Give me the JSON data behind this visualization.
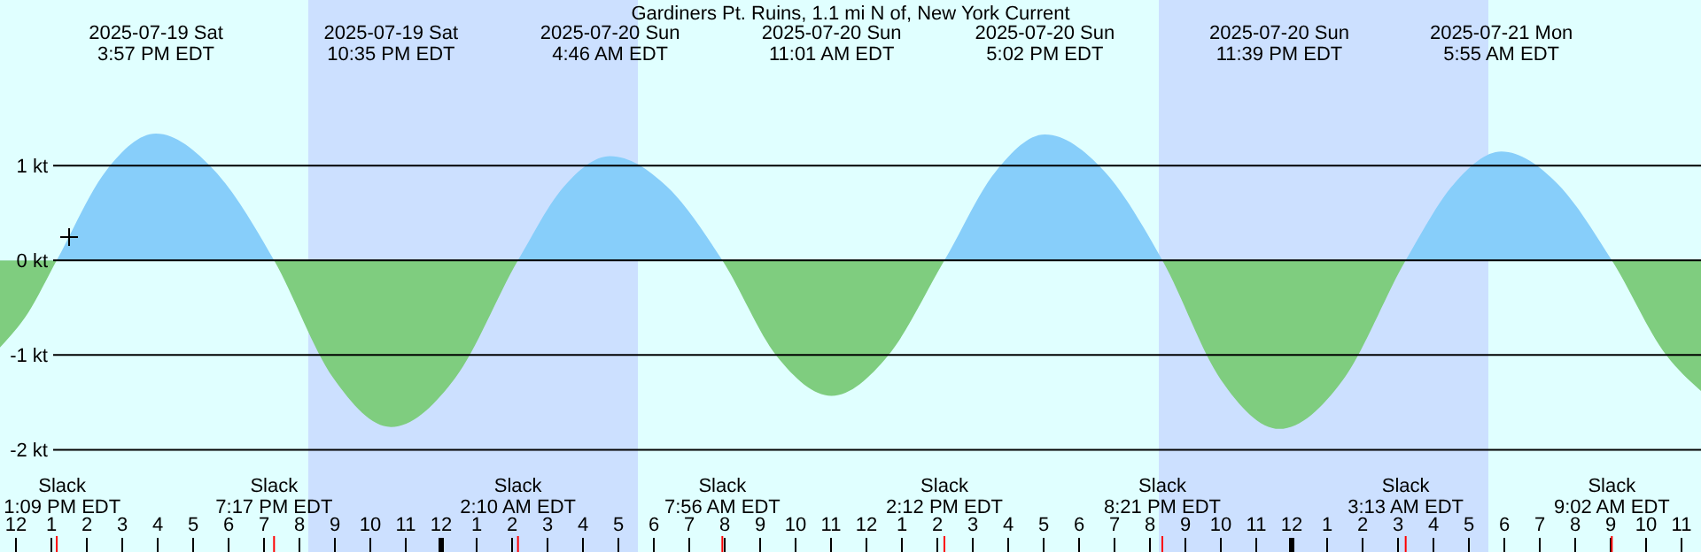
{
  "chart_data": {
    "type": "area",
    "title": "Gardiners Pt. Ruins, 1.1 mi N of, New York Current",
    "x": [
      "2025-07-19T11:33",
      "2025-07-19T12:21",
      "2025-07-19T13:09",
      "2025-07-19T14:33",
      "2025-07-19T15:57",
      "2025-07-19T17:36",
      "2025-07-19T19:17",
      "2025-07-19T20:57",
      "2025-07-19T22:35",
      "2025-07-20T00:24",
      "2025-07-20T02:10",
      "2025-07-20T03:28",
      "2025-07-20T04:46",
      "2025-07-20T06:22",
      "2025-07-20T07:56",
      "2025-07-20T09:28",
      "2025-07-20T11:01",
      "2025-07-20T12:36",
      "2025-07-20T14:12",
      "2025-07-20T15:39",
      "2025-07-20T17:02",
      "2025-07-20T18:43",
      "2025-07-20T20:21",
      "2025-07-20T22:00",
      "2025-07-20T23:39",
      "2025-07-21T01:27",
      "2025-07-21T03:13",
      "2025-07-21T04:35",
      "2025-07-21T05:55",
      "2025-07-21T07:30",
      "2025-07-21T09:02",
      "2025-07-21T10:34",
      "2025-07-21T11:33"
    ],
    "series": [
      {
        "color": "#87cefa",
        "values": [
          -0.92,
          -0.55,
          0,
          0.95,
          1.34,
          0.95,
          0,
          -1.24,
          -1.76,
          -1.24,
          0,
          0.78,
          1.1,
          0.78,
          0,
          -1.01,
          -1.43,
          -1.01,
          0,
          0.94,
          1.33,
          0.94,
          0,
          -1.26,
          -1.78,
          -1.26,
          0,
          0.81,
          1.15,
          0.81,
          0,
          -1.0,
          -1.38
        ]
      }
    ],
    "colors": [
      "#87cefa",
      "#7fcd7f"
    ],
    "xlim": [
      "2025-07-19T11:33",
      "2025-07-21T11:33"
    ],
    "xticks": [
      {
        "value": "2025-07-19T12:00",
        "label": "12"
      },
      {
        "value": "2025-07-19T13:00",
        "label": "1"
      },
      {
        "value": "2025-07-19T14:00",
        "label": "2"
      },
      {
        "value": "2025-07-19T15:00",
        "label": "3"
      },
      {
        "value": "2025-07-19T16:00",
        "label": "4"
      },
      {
        "value": "2025-07-19T17:00",
        "label": "5"
      },
      {
        "value": "2025-07-19T18:00",
        "label": "6"
      },
      {
        "value": "2025-07-19T19:00",
        "label": "7"
      },
      {
        "value": "2025-07-19T20:00",
        "label": "8"
      },
      {
        "value": "2025-07-19T21:00",
        "label": "9"
      },
      {
        "value": "2025-07-19T22:00",
        "label": "10"
      },
      {
        "value": "2025-07-19T23:00",
        "label": "11"
      },
      {
        "value": "2025-07-20T00:00",
        "label": "12"
      },
      {
        "value": "2025-07-20T01:00",
        "label": "1"
      },
      {
        "value": "2025-07-20T02:00",
        "label": "2"
      },
      {
        "value": "2025-07-20T03:00",
        "label": "3"
      },
      {
        "value": "2025-07-20T04:00",
        "label": "4"
      },
      {
        "value": "2025-07-20T05:00",
        "label": "5"
      },
      {
        "value": "2025-07-20T06:00",
        "label": "6"
      },
      {
        "value": "2025-07-20T07:00",
        "label": "7"
      },
      {
        "value": "2025-07-20T08:00",
        "label": "8"
      },
      {
        "value": "2025-07-20T09:00",
        "label": "9"
      },
      {
        "value": "2025-07-20T10:00",
        "label": "10"
      },
      {
        "value": "2025-07-20T11:00",
        "label": "11"
      },
      {
        "value": "2025-07-20T12:00",
        "label": "12"
      },
      {
        "value": "2025-07-20T13:00",
        "label": "1"
      },
      {
        "value": "2025-07-20T14:00",
        "label": "2"
      },
      {
        "value": "2025-07-20T15:00",
        "label": "3"
      },
      {
        "value": "2025-07-20T16:00",
        "label": "4"
      },
      {
        "value": "2025-07-20T17:00",
        "label": "5"
      },
      {
        "value": "2025-07-20T18:00",
        "label": "6"
      },
      {
        "value": "2025-07-20T19:00",
        "label": "7"
      },
      {
        "value": "2025-07-20T20:00",
        "label": "8"
      },
      {
        "value": "2025-07-20T21:00",
        "label": "9"
      },
      {
        "value": "2025-07-20T22:00",
        "label": "10"
      },
      {
        "value": "2025-07-20T23:00",
        "label": "11"
      },
      {
        "value": "2025-07-21T00:00",
        "label": "12"
      },
      {
        "value": "2025-07-21T01:00",
        "label": "1"
      },
      {
        "value": "2025-07-21T02:00",
        "label": "2"
      },
      {
        "value": "2025-07-21T03:00",
        "label": "3"
      },
      {
        "value": "2025-07-21T04:00",
        "label": "4"
      },
      {
        "value": "2025-07-21T05:00",
        "label": "5"
      },
      {
        "value": "2025-07-21T06:00",
        "label": "6"
      },
      {
        "value": "2025-07-21T07:00",
        "label": "7"
      },
      {
        "value": "2025-07-21T08:00",
        "label": "8"
      },
      {
        "value": "2025-07-21T09:00",
        "label": "9"
      },
      {
        "value": "2025-07-21T10:00",
        "label": "10"
      },
      {
        "value": "2025-07-21T11:00",
        "label": "11"
      }
    ],
    "ylim": [
      -3.08,
      2.75
    ],
    "yticks": [
      {
        "value": 1,
        "label": "1 kt"
      },
      {
        "value": 0,
        "label": "0 kt"
      },
      {
        "value": -1,
        "label": "-1 kt"
      },
      {
        "value": -2,
        "label": "-2 kt"
      }
    ],
    "grid": "y",
    "bands": [
      {
        "axis": "x",
        "from": "2025-07-19T20:15",
        "to": "2025-07-20T05:33",
        "color": "#cce0ff"
      },
      {
        "axis": "x",
        "from": "2025-07-20T20:15",
        "to": "2025-07-21T05:33",
        "color": "#cce0ff"
      }
    ],
    "annotations": [
      "2025-07-19 Sat\n3:57 PM EDT",
      "2025-07-19 Sat\n10:35 PM EDT",
      "2025-07-20 Sun\n4:46 AM EDT",
      "2025-07-20 Sun\n11:01 AM EDT",
      "2025-07-20 Sun\n5:02 PM EDT",
      "2025-07-20 Sun\n11:39 PM EDT",
      "2025-07-21 Mon\n5:55 AM EDT",
      "Slack\n1:09 PM EDT",
      "Slack\n7:17 PM EDT",
      "Slack\n2:10 AM EDT",
      "Slack\n7:56 AM EDT",
      "Slack\n2:12 PM EDT",
      "Slack\n8:21 PM EDT",
      "Slack\n3:13 AM EDT",
      "Slack\n9:02 AM EDT"
    ]
  }
}
